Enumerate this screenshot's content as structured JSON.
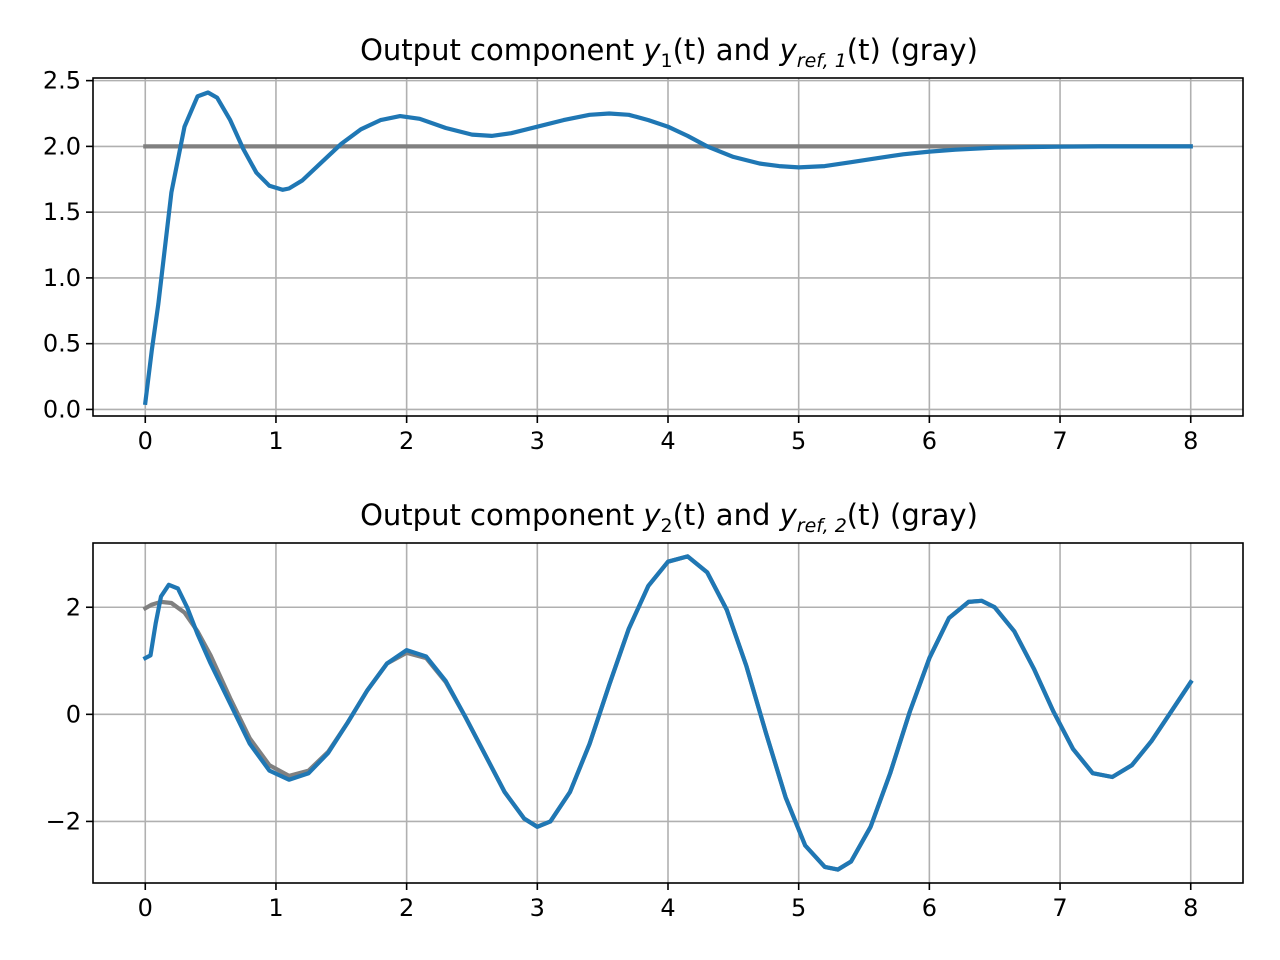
{
  "chart_data": [
    {
      "type": "line",
      "title": {
        "prefix": "Output component ",
        "y_var": "y",
        "y_sub": "1",
        "mid": "(t) and ",
        "ref_var": "y",
        "ref_sub": "ref, 1",
        "suffix": "(t) (gray)"
      },
      "xlabel": "",
      "ylabel": "",
      "xlim": [
        -0.4,
        8.4
      ],
      "ylim": [
        -0.05,
        2.52
      ],
      "xticks": [
        0,
        1,
        2,
        3,
        4,
        5,
        6,
        7,
        8
      ],
      "yticks": [
        0.0,
        0.5,
        1.0,
        1.5,
        2.0,
        2.5
      ],
      "ytick_labels": [
        "0.0",
        "0.5",
        "1.0",
        "1.5",
        "2.0",
        "2.5"
      ],
      "grid": true,
      "series": [
        {
          "role": "reference",
          "color": "#808080",
          "x": [
            0,
            8
          ],
          "y": [
            2.0,
            2.0
          ]
        },
        {
          "role": "output",
          "color": "#1f77b4",
          "x": [
            0,
            0.05,
            0.1,
            0.2,
            0.3,
            0.4,
            0.48,
            0.55,
            0.65,
            0.75,
            0.85,
            0.95,
            1.05,
            1.1,
            1.2,
            1.35,
            1.5,
            1.65,
            1.8,
            1.95,
            2.1,
            2.3,
            2.5,
            2.65,
            2.8,
            3.0,
            3.2,
            3.4,
            3.55,
            3.7,
            3.85,
            4.0,
            4.15,
            4.3,
            4.5,
            4.7,
            4.85,
            5.0,
            5.2,
            5.4,
            5.6,
            5.8,
            6.0,
            6.2,
            6.5,
            6.8,
            7.0,
            7.3,
            7.6,
            8.0
          ],
          "y": [
            0.05,
            0.45,
            0.8,
            1.65,
            2.15,
            2.38,
            2.41,
            2.37,
            2.2,
            1.98,
            1.8,
            1.7,
            1.67,
            1.68,
            1.74,
            1.88,
            2.02,
            2.13,
            2.2,
            2.23,
            2.21,
            2.14,
            2.09,
            2.08,
            2.1,
            2.15,
            2.2,
            2.24,
            2.25,
            2.24,
            2.2,
            2.15,
            2.08,
            2.0,
            1.92,
            1.87,
            1.85,
            1.84,
            1.85,
            1.88,
            1.91,
            1.94,
            1.96,
            1.975,
            1.99,
            1.995,
            1.998,
            2.0,
            2.0,
            2.0
          ]
        }
      ]
    },
    {
      "type": "line",
      "title": {
        "prefix": "Output component ",
        "y_var": "y",
        "y_sub": "2",
        "mid": "(t) and ",
        "ref_var": "y",
        "ref_sub": "ref, 2",
        "suffix": "(t) (gray)"
      },
      "xlabel": "",
      "ylabel": "",
      "xlim": [
        -0.4,
        8.4
      ],
      "ylim": [
        -3.15,
        3.2
      ],
      "xticks": [
        0,
        1,
        2,
        3,
        4,
        5,
        6,
        7,
        8
      ],
      "yticks": [
        -2,
        0,
        2
      ],
      "ytick_labels": [
        "−2",
        "0",
        "2"
      ],
      "grid": true,
      "series": [
        {
          "role": "reference",
          "color": "#808080",
          "x": [
            0,
            0.05,
            0.12,
            0.2,
            0.3,
            0.4,
            0.5,
            0.65,
            0.8,
            0.95,
            1.1,
            1.25,
            1.4,
            1.55,
            1.7,
            1.85,
            2.0,
            2.15,
            2.3,
            2.45,
            2.6,
            2.75,
            2.9,
            3.0,
            3.1,
            3.25,
            3.4,
            3.55,
            3.7,
            3.85,
            4.0,
            4.15,
            4.3,
            4.45,
            4.6,
            4.75,
            4.9,
            5.05,
            5.2,
            5.3,
            5.4,
            5.55,
            5.7,
            5.85,
            6.0,
            6.15,
            6.3,
            6.4,
            6.5,
            6.65,
            6.8,
            6.95,
            7.1,
            7.25,
            7.4,
            7.55,
            7.7,
            7.85,
            8.0
          ],
          "y": [
            1.98,
            2.05,
            2.1,
            2.08,
            1.9,
            1.55,
            1.1,
            0.3,
            -0.45,
            -0.95,
            -1.15,
            -1.05,
            -0.7,
            -0.15,
            0.45,
            0.95,
            1.15,
            1.05,
            0.6,
            -0.05,
            -0.75,
            -1.45,
            -1.95,
            -2.1,
            -2.0,
            -1.45,
            -0.55,
            0.55,
            1.6,
            2.4,
            2.85,
            2.95,
            2.65,
            1.95,
            0.9,
            -0.35,
            -1.55,
            -2.45,
            -2.85,
            -2.9,
            -2.75,
            -2.1,
            -1.1,
            0.05,
            1.05,
            1.8,
            2.1,
            2.12,
            2.0,
            1.55,
            0.85,
            0.05,
            -0.65,
            -1.1,
            -1.17,
            -0.95,
            -0.5,
            0.05,
            0.6
          ]
        },
        {
          "role": "output",
          "color": "#1f77b4",
          "x": [
            0,
            0.04,
            0.08,
            0.12,
            0.18,
            0.25,
            0.32,
            0.4,
            0.5,
            0.65,
            0.8,
            0.95,
            1.1,
            1.25,
            1.4,
            1.55,
            1.7,
            1.85,
            2.0,
            2.15,
            2.3,
            2.45,
            2.6,
            2.75,
            2.9,
            3.0,
            3.1,
            3.25,
            3.4,
            3.55,
            3.7,
            3.85,
            4.0,
            4.15,
            4.3,
            4.45,
            4.6,
            4.75,
            4.9,
            5.05,
            5.2,
            5.3,
            5.4,
            5.55,
            5.7,
            5.85,
            6.0,
            6.15,
            6.3,
            6.4,
            6.5,
            6.65,
            6.8,
            6.95,
            7.1,
            7.25,
            7.4,
            7.55,
            7.7,
            7.85,
            8.0
          ],
          "y": [
            1.05,
            1.1,
            1.7,
            2.2,
            2.42,
            2.35,
            2.0,
            1.5,
            0.95,
            0.2,
            -0.55,
            -1.05,
            -1.22,
            -1.1,
            -0.72,
            -0.15,
            0.45,
            0.95,
            1.2,
            1.08,
            0.62,
            -0.05,
            -0.75,
            -1.45,
            -1.95,
            -2.1,
            -2.0,
            -1.45,
            -0.55,
            0.55,
            1.6,
            2.4,
            2.85,
            2.95,
            2.65,
            1.95,
            0.9,
            -0.35,
            -1.55,
            -2.45,
            -2.85,
            -2.9,
            -2.75,
            -2.1,
            -1.1,
            0.05,
            1.05,
            1.8,
            2.1,
            2.12,
            2.0,
            1.55,
            0.85,
            0.05,
            -0.65,
            -1.1,
            -1.17,
            -0.95,
            -0.5,
            0.05,
            0.6
          ]
        }
      ]
    }
  ]
}
